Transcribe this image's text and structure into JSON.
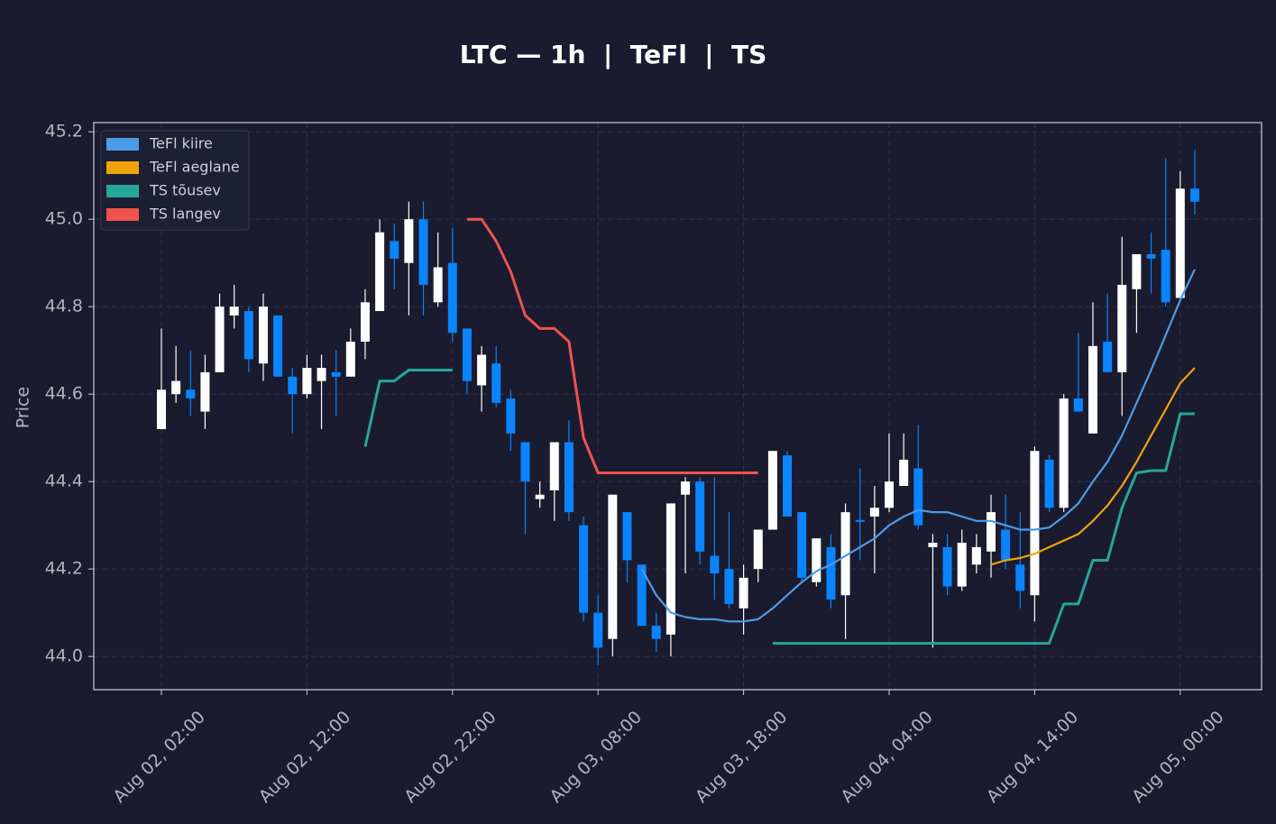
{
  "chart_data": {
    "type": "candlestick",
    "title": "LTC — 1h  |  TeFl  |  TS",
    "ylabel": "Price",
    "categories": [
      "Aug 02, 02:00",
      "Aug 02, 03:00",
      "Aug 02, 04:00",
      "Aug 02, 05:00",
      "Aug 02, 06:00",
      "Aug 02, 07:00",
      "Aug 02, 08:00",
      "Aug 02, 09:00",
      "Aug 02, 10:00",
      "Aug 02, 11:00",
      "Aug 02, 12:00",
      "Aug 02, 13:00",
      "Aug 02, 14:00",
      "Aug 02, 15:00",
      "Aug 02, 16:00",
      "Aug 02, 17:00",
      "Aug 02, 18:00",
      "Aug 02, 19:00",
      "Aug 02, 20:00",
      "Aug 02, 21:00",
      "Aug 02, 22:00",
      "Aug 02, 23:00",
      "Aug 03, 00:00",
      "Aug 03, 01:00",
      "Aug 03, 02:00",
      "Aug 03, 03:00",
      "Aug 03, 04:00",
      "Aug 03, 05:00",
      "Aug 03, 06:00",
      "Aug 03, 07:00",
      "Aug 03, 08:00",
      "Aug 03, 09:00",
      "Aug 03, 10:00",
      "Aug 03, 11:00",
      "Aug 03, 12:00",
      "Aug 03, 13:00",
      "Aug 03, 14:00",
      "Aug 03, 15:00",
      "Aug 03, 16:00",
      "Aug 03, 17:00",
      "Aug 03, 18:00",
      "Aug 03, 19:00",
      "Aug 03, 20:00",
      "Aug 03, 21:00",
      "Aug 03, 22:00",
      "Aug 03, 23:00",
      "Aug 04, 00:00",
      "Aug 04, 01:00",
      "Aug 04, 02:00",
      "Aug 04, 03:00",
      "Aug 04, 04:00",
      "Aug 04, 05:00",
      "Aug 04, 06:00",
      "Aug 04, 07:00",
      "Aug 04, 08:00",
      "Aug 04, 09:00",
      "Aug 04, 10:00",
      "Aug 04, 11:00",
      "Aug 04, 12:00",
      "Aug 04, 13:00",
      "Aug 04, 14:00",
      "Aug 04, 15:00",
      "Aug 04, 16:00",
      "Aug 04, 17:00",
      "Aug 04, 18:00",
      "Aug 04, 19:00",
      "Aug 04, 20:00",
      "Aug 04, 21:00",
      "Aug 04, 22:00",
      "Aug 04, 23:00",
      "Aug 05, 00:00",
      "Aug 05, 01:00"
    ],
    "open": [
      44.52,
      44.6,
      44.61,
      44.56,
      44.65,
      44.78,
      44.79,
      44.67,
      44.78,
      44.64,
      44.6,
      44.63,
      44.65,
      44.64,
      44.72,
      44.79,
      44.95,
      44.9,
      45.0,
      44.81,
      44.9,
      44.75,
      44.62,
      44.67,
      44.59,
      44.49,
      44.36,
      44.38,
      44.49,
      44.3,
      44.1,
      44.04,
      44.33,
      44.21,
      44.07,
      44.05,
      44.37,
      44.4,
      44.23,
      44.2,
      44.11,
      44.2,
      44.29,
      44.46,
      44.33,
      44.17,
      44.25,
      44.14,
      44.312,
      44.32,
      44.34,
      44.39,
      44.43,
      44.25,
      44.25,
      44.16,
      44.21,
      44.24,
      44.29,
      44.21,
      44.14,
      44.45,
      44.34,
      44.59,
      44.51,
      44.72,
      44.65,
      44.84,
      44.92,
      44.93,
      44.82,
      45.07
    ],
    "high": [
      44.75,
      44.71,
      44.7,
      44.69,
      44.83,
      44.85,
      44.8,
      44.83,
      44.78,
      44.66,
      44.69,
      44.69,
      44.7,
      44.75,
      44.84,
      45.0,
      44.99,
      45.04,
      45.04,
      44.97,
      44.98,
      44.75,
      44.71,
      44.71,
      44.61,
      44.49,
      44.4,
      44.49,
      44.54,
      44.32,
      44.14,
      44.37,
      44.33,
      44.21,
      44.1,
      44.35,
      44.41,
      44.41,
      44.41,
      44.33,
      44.21,
      44.29,
      44.47,
      44.47,
      44.33,
      44.27,
      44.28,
      44.35,
      44.43,
      44.39,
      44.51,
      44.51,
      44.53,
      44.28,
      44.28,
      44.29,
      44.28,
      44.37,
      44.37,
      44.33,
      44.48,
      44.46,
      44.6,
      44.74,
      44.81,
      44.83,
      44.96,
      44.92,
      44.97,
      45.14,
      45.11,
      45.16
    ],
    "low": [
      44.52,
      44.58,
      44.55,
      44.52,
      44.65,
      44.75,
      44.65,
      44.63,
      44.64,
      44.51,
      44.59,
      44.52,
      44.55,
      44.64,
      44.68,
      44.79,
      44.84,
      44.78,
      44.78,
      44.8,
      44.72,
      44.6,
      44.56,
      44.57,
      44.47,
      44.28,
      44.34,
      44.31,
      44.31,
      44.08,
      43.98,
      44.0,
      44.17,
      44.07,
      44.01,
      44.0,
      44.19,
      44.21,
      44.13,
      44.11,
      44.05,
      44.17,
      44.29,
      44.32,
      44.17,
      44.16,
      44.11,
      44.04,
      44.22,
      44.19,
      44.33,
      44.39,
      44.29,
      44.02,
      44.14,
      44.15,
      44.19,
      44.18,
      44.2,
      44.11,
      44.08,
      44.33,
      44.33,
      44.56,
      44.51,
      44.65,
      44.55,
      44.74,
      44.83,
      44.8,
      44.82,
      45.01
    ],
    "close": [
      44.61,
      44.63,
      44.59,
      44.65,
      44.8,
      44.8,
      44.68,
      44.8,
      44.64,
      44.6,
      44.66,
      44.66,
      44.64,
      44.72,
      44.81,
      44.97,
      44.91,
      45.0,
      44.85,
      44.89,
      44.74,
      44.63,
      44.69,
      44.58,
      44.51,
      44.4,
      44.37,
      44.49,
      44.33,
      44.1,
      44.02,
      44.37,
      44.22,
      44.07,
      44.04,
      44.35,
      44.4,
      44.24,
      44.19,
      44.12,
      44.18,
      44.29,
      44.47,
      44.32,
      44.18,
      44.27,
      44.13,
      44.33,
      44.308,
      44.34,
      44.4,
      44.45,
      44.3,
      44.26,
      44.16,
      44.26,
      44.25,
      44.33,
      44.22,
      44.15,
      44.47,
      44.34,
      44.59,
      44.56,
      44.71,
      44.65,
      44.85,
      44.92,
      44.91,
      44.81,
      45.07,
      45.04
    ],
    "up_color": "#ffffff",
    "down_color": "#0a84ff",
    "lines": [
      {
        "name": "TeFl kiire",
        "color": "#4c9be8",
        "values": [
          null,
          null,
          null,
          null,
          null,
          null,
          null,
          null,
          null,
          null,
          null,
          null,
          null,
          null,
          null,
          null,
          null,
          null,
          null,
          null,
          null,
          null,
          null,
          null,
          null,
          null,
          null,
          null,
          null,
          null,
          null,
          null,
          null,
          44.2,
          44.14,
          44.1,
          44.09,
          44.085,
          44.085,
          44.08,
          44.08,
          44.085,
          44.11,
          44.14,
          44.17,
          44.195,
          44.21,
          44.23,
          44.25,
          44.27,
          44.3,
          44.32,
          44.335,
          44.33,
          44.33,
          44.32,
          44.31,
          44.31,
          44.3,
          44.29,
          44.29,
          44.295,
          44.32,
          44.35,
          44.4,
          44.445,
          44.505,
          44.58,
          44.655,
          44.735,
          44.815,
          44.885
        ]
      },
      {
        "name": "TeFl aeglane",
        "color": "#f0a30a",
        "values": [
          null,
          null,
          null,
          null,
          null,
          null,
          null,
          null,
          null,
          null,
          null,
          null,
          null,
          null,
          null,
          null,
          null,
          null,
          null,
          null,
          null,
          null,
          null,
          null,
          null,
          null,
          null,
          null,
          null,
          null,
          null,
          null,
          null,
          null,
          null,
          null,
          null,
          null,
          null,
          null,
          null,
          null,
          null,
          null,
          null,
          null,
          null,
          null,
          null,
          null,
          null,
          null,
          null,
          null,
          null,
          null,
          null,
          44.21,
          44.22,
          44.225,
          44.235,
          44.25,
          44.265,
          44.28,
          44.31,
          44.345,
          44.39,
          44.445,
          44.505,
          44.565,
          44.625,
          44.66
        ]
      },
      {
        "name": "TS tõusev",
        "color": "#26a69a",
        "values": [
          null,
          null,
          null,
          null,
          null,
          null,
          null,
          null,
          null,
          null,
          null,
          null,
          null,
          null,
          44.48,
          44.63,
          44.63,
          44.655,
          44.655,
          44.655,
          44.655,
          null,
          null,
          null,
          null,
          null,
          null,
          null,
          null,
          null,
          null,
          null,
          null,
          null,
          null,
          null,
          null,
          null,
          null,
          null,
          null,
          null,
          44.03,
          44.03,
          44.03,
          44.03,
          44.03,
          44.03,
          44.03,
          44.03,
          44.03,
          44.03,
          44.03,
          44.03,
          44.03,
          44.03,
          44.03,
          44.03,
          44.03,
          44.03,
          44.03,
          44.03,
          44.12,
          44.12,
          44.22,
          44.22,
          44.34,
          44.42,
          44.425,
          44.425,
          44.555,
          44.555
        ]
      },
      {
        "name": "TS langev",
        "color": "#ef5350",
        "values": [
          null,
          null,
          null,
          null,
          null,
          null,
          null,
          null,
          null,
          null,
          null,
          null,
          null,
          null,
          null,
          null,
          null,
          null,
          null,
          null,
          null,
          45.0,
          45.0,
          44.95,
          44.88,
          44.78,
          44.75,
          44.75,
          44.72,
          44.5,
          44.42,
          44.42,
          44.42,
          44.42,
          44.42,
          44.42,
          44.42,
          44.42,
          44.42,
          44.42,
          44.42,
          44.42,
          null,
          null,
          null,
          null,
          null,
          null,
          null,
          null,
          null,
          null,
          null,
          null,
          null,
          null,
          null,
          null,
          null,
          null,
          null,
          null,
          null,
          null,
          null,
          null,
          null,
          null,
          null,
          null,
          null,
          null
        ]
      }
    ],
    "xticks": [
      "Aug 02, 02:00",
      "Aug 02, 12:00",
      "Aug 02, 22:00",
      "Aug 03, 08:00",
      "Aug 03, 18:00",
      "Aug 04, 04:00",
      "Aug 04, 14:00",
      "Aug 05, 00:00"
    ],
    "ylim": [
      43.924,
      45.221
    ],
    "yticks": [
      {
        "value": 44,
        "label": "44.0"
      },
      44.2,
      44.4,
      44.6,
      44.8,
      {
        "value": 45,
        "label": "45.0"
      },
      45.2
    ],
    "grid": true
  }
}
